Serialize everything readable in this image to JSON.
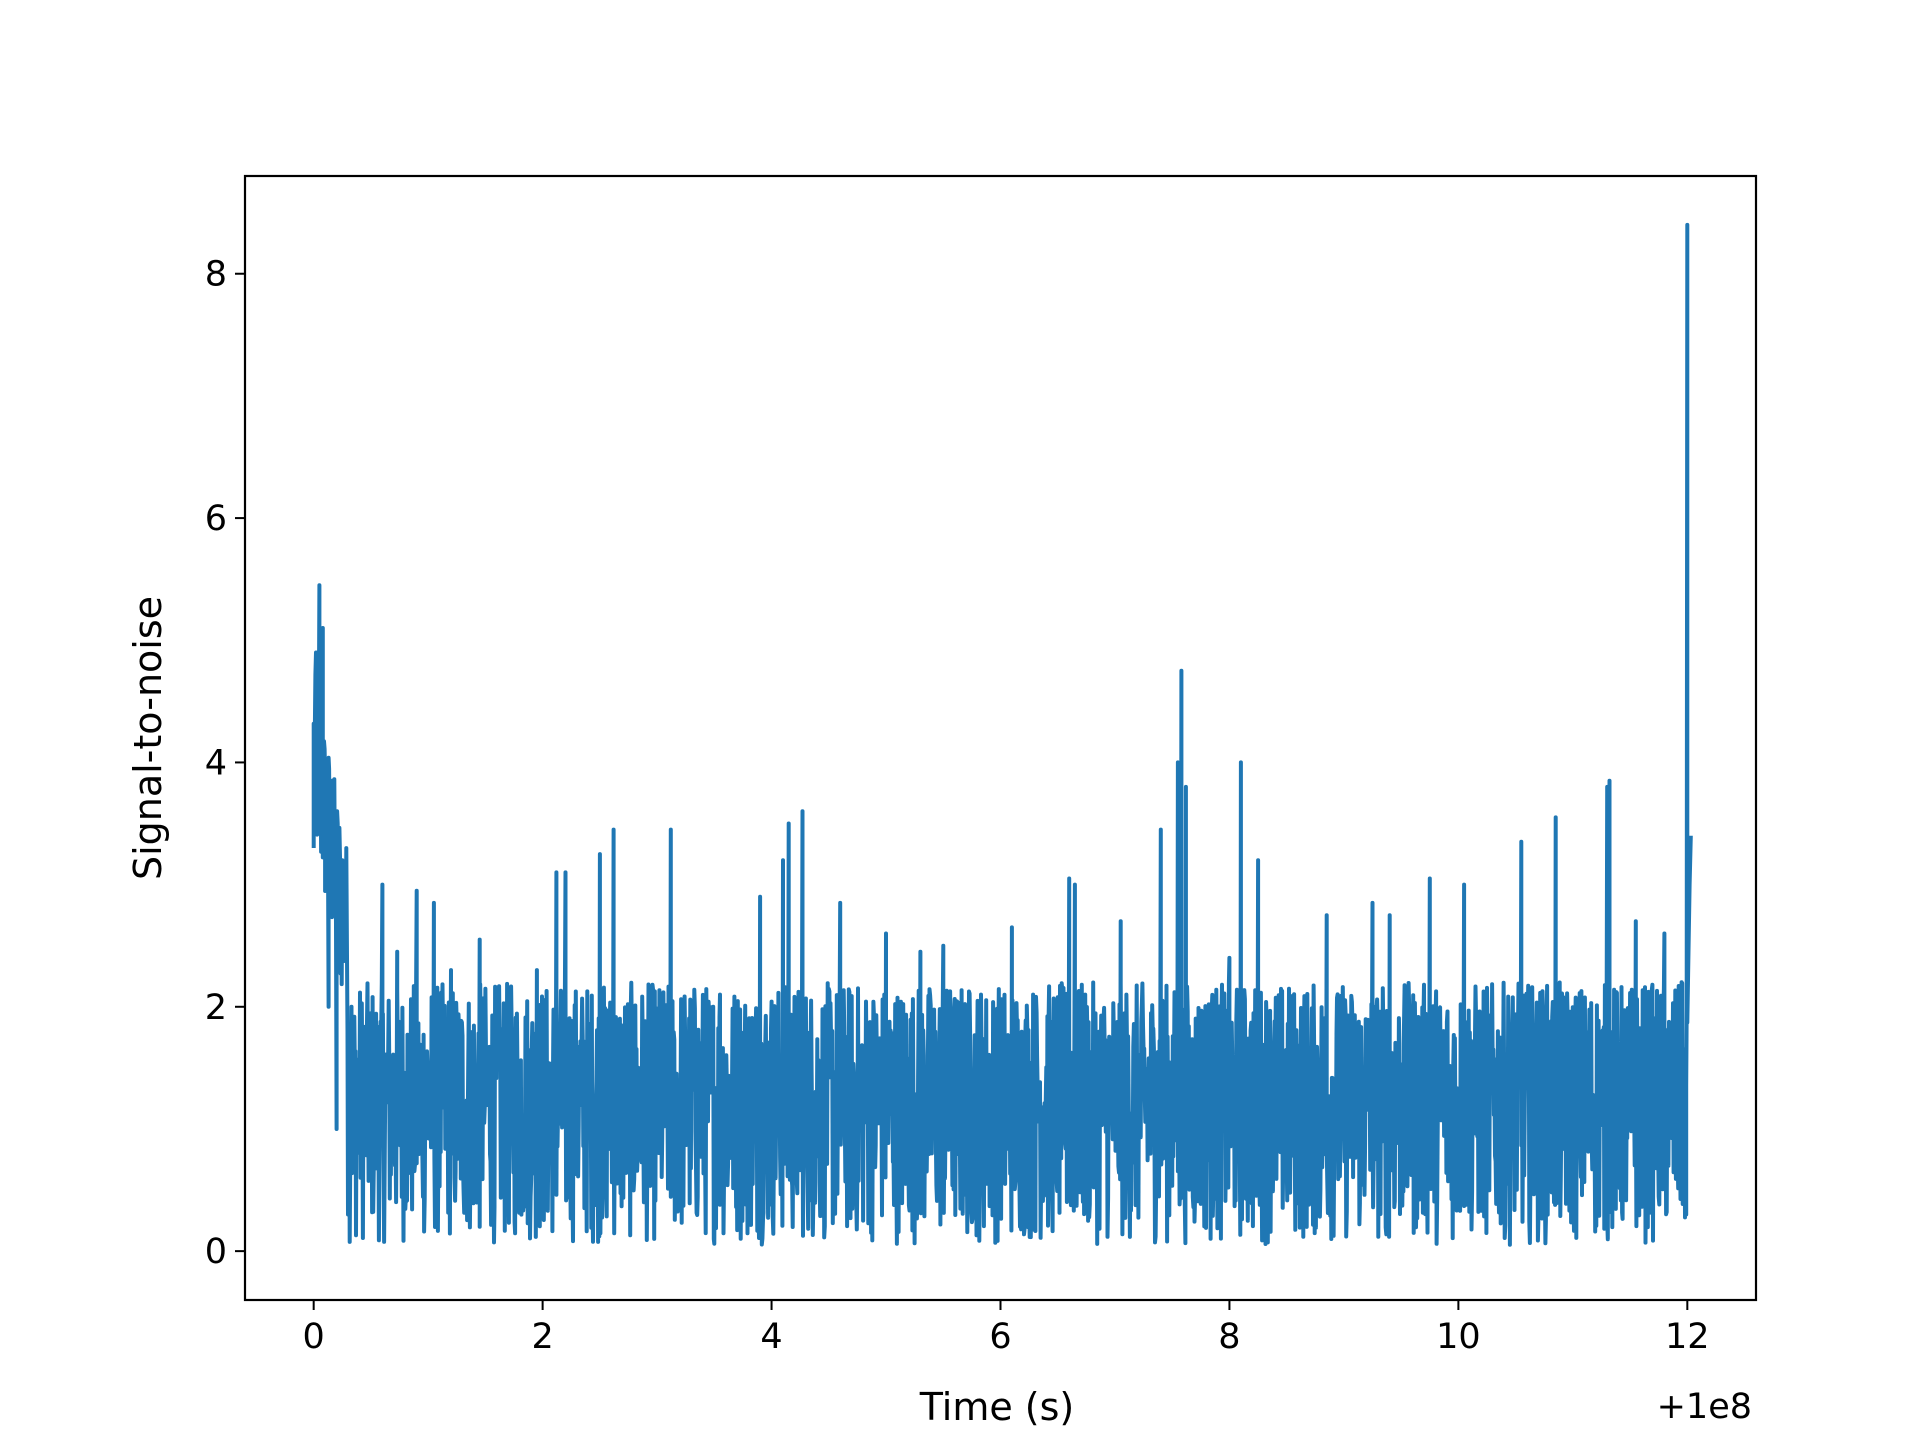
{
  "chart_data": {
    "type": "line",
    "title": "",
    "xlabel": "Time (s)",
    "ylabel": "Signal-to-noise",
    "x_offset_label": "+1e8",
    "xlim": [
      -0.6,
      12.6
    ],
    "ylim": [
      -0.4,
      8.8
    ],
    "xticks": [
      0,
      2,
      4,
      6,
      8,
      10,
      12
    ],
    "yticks": [
      0,
      2,
      4,
      6,
      8
    ],
    "grid": false,
    "color": "#1f77b4",
    "x_range": [
      0,
      12
    ],
    "series": [
      {
        "name": "",
        "keypoints": [
          [
            0.0,
            3.3
          ],
          [
            0.02,
            4.9
          ],
          [
            0.05,
            5.45
          ],
          [
            0.08,
            5.1
          ],
          [
            0.1,
            3.9
          ],
          [
            0.13,
            2.0
          ],
          [
            0.16,
            3.85
          ],
          [
            0.2,
            1.0
          ],
          [
            0.25,
            3.2
          ],
          [
            0.3,
            0.3
          ],
          [
            0.33,
            2.0
          ],
          [
            0.6,
            3.0
          ],
          [
            0.73,
            2.45
          ],
          [
            0.9,
            2.95
          ],
          [
            1.05,
            2.85
          ],
          [
            1.2,
            2.3
          ],
          [
            1.45,
            2.55
          ],
          [
            1.95,
            2.3
          ],
          [
            2.12,
            3.1
          ],
          [
            2.2,
            3.1
          ],
          [
            2.5,
            3.25
          ],
          [
            2.62,
            3.45
          ],
          [
            3.12,
            3.45
          ],
          [
            3.55,
            2.1
          ],
          [
            3.9,
            2.9
          ],
          [
            4.1,
            3.2
          ],
          [
            4.15,
            3.5
          ],
          [
            4.27,
            3.6
          ],
          [
            4.6,
            2.85
          ],
          [
            5.0,
            2.6
          ],
          [
            5.3,
            2.45
          ],
          [
            5.5,
            2.5
          ],
          [
            6.1,
            2.65
          ],
          [
            6.6,
            3.05
          ],
          [
            6.65,
            3.0
          ],
          [
            7.05,
            2.7
          ],
          [
            7.4,
            3.45
          ],
          [
            7.55,
            4.0
          ],
          [
            7.58,
            4.75
          ],
          [
            7.62,
            3.8
          ],
          [
            8.0,
            2.4
          ],
          [
            8.1,
            4.0
          ],
          [
            8.25,
            3.2
          ],
          [
            8.85,
            2.75
          ],
          [
            9.25,
            2.85
          ],
          [
            9.4,
            2.75
          ],
          [
            9.75,
            3.05
          ],
          [
            10.05,
            3.0
          ],
          [
            10.55,
            3.35
          ],
          [
            10.85,
            3.55
          ],
          [
            11.3,
            3.8
          ],
          [
            11.32,
            3.85
          ],
          [
            11.55,
            2.7
          ],
          [
            11.8,
            2.6
          ],
          [
            11.95,
            2.2
          ],
          [
            11.99,
            0.3
          ],
          [
            12.0,
            8.4
          ],
          [
            12.02,
            3.0
          ],
          [
            12.03,
            3.4
          ]
        ],
        "baseline_range": [
          0.05,
          2.2
        ]
      }
    ]
  }
}
